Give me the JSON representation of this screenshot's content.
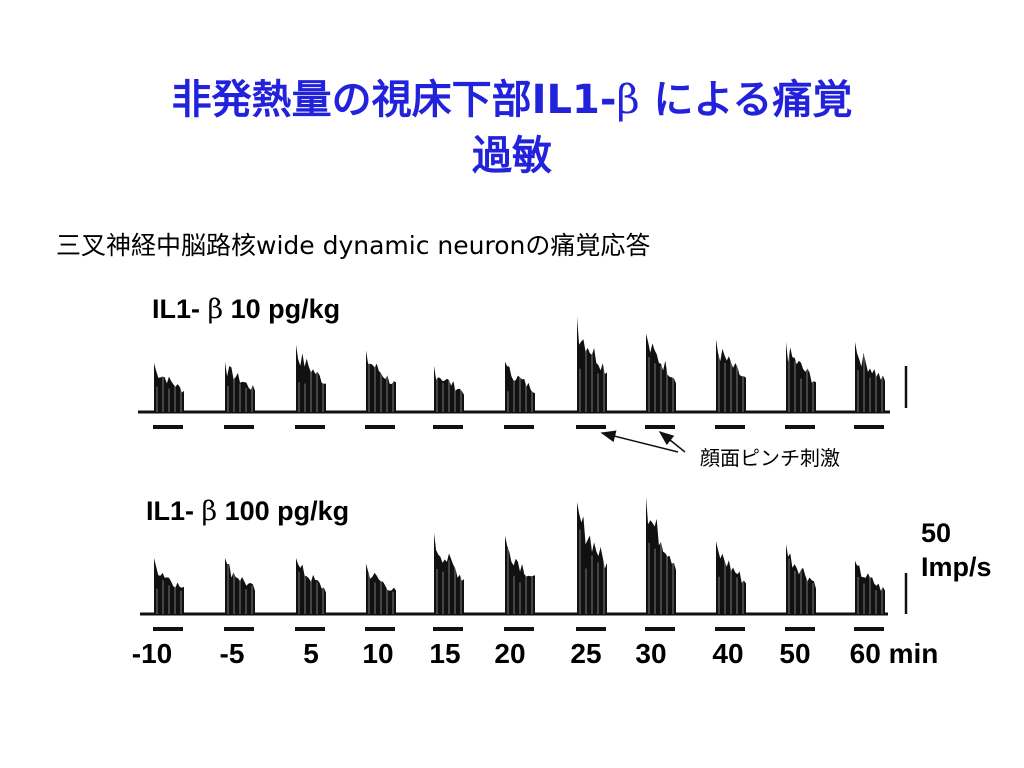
{
  "title": {
    "line1_a": "非発熱量の視床下部IL1-",
    "line1_beta": "β",
    "line1_b": " による痛覚",
    "line2": "過敏"
  },
  "subtitle": "三叉神経中脳路核wide dynamic neuronの痛覚応答",
  "annotation": "顔面ピンチ刺激",
  "scale_bar": {
    "value": "50",
    "unit": "Imp/s"
  },
  "colors": {
    "title": "#2222dd",
    "trace": "#111111"
  },
  "chart_data": {
    "type": "bar",
    "unit_suffix": "min",
    "ticks": [
      "-10",
      "-5",
      "5",
      "10",
      "15",
      "20",
      "25",
      "30",
      "40",
      "50",
      "60 min"
    ],
    "x": [
      -10,
      -5,
      5,
      10,
      15,
      20,
      25,
      30,
      40,
      50,
      60
    ],
    "scale_bar_imp_per_s": 50,
    "series": [
      {
        "name": "IL1- β 10 pg/kg",
        "label_a": "IL1- ",
        "label_beta": "β",
        "label_b": " 10 pg/kg",
        "values": [
          35,
          36,
          48,
          44,
          33,
          36,
          68,
          56,
          52,
          50,
          50
        ]
      },
      {
        "name": "IL1- β 100 pg/kg",
        "label_a": "IL1- ",
        "label_beta": "β",
        "label_b": " 100 pg/kg",
        "values": [
          40,
          40,
          40,
          36,
          58,
          56,
          80,
          84,
          52,
          50,
          38
        ]
      }
    ]
  }
}
